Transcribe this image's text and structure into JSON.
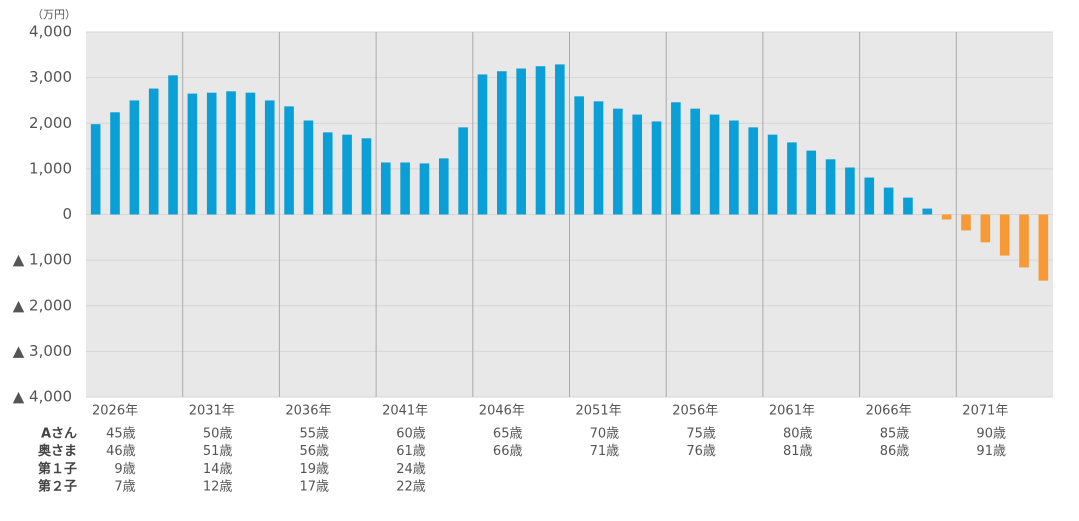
{
  "chart_data": {
    "type": "bar",
    "unit_label": "（万円）",
    "categories": [
      "2026年",
      null,
      null,
      null,
      null,
      "2031年",
      null,
      null,
      null,
      null,
      "2036年",
      null,
      null,
      null,
      null,
      "2041年",
      null,
      null,
      null,
      null,
      "2046年",
      null,
      null,
      null,
      null,
      "2051年",
      null,
      null,
      null,
      null,
      "2056年",
      null,
      null,
      null,
      null,
      "2061年",
      null,
      null,
      null,
      null,
      "2066年",
      null,
      null,
      null,
      null,
      "2071年",
      null,
      null,
      null,
      null
    ],
    "values": [
      1980,
      2240,
      2500,
      2760,
      3050,
      2650,
      2670,
      2700,
      2670,
      2500,
      2370,
      2060,
      1800,
      1750,
      1670,
      1140,
      1140,
      1120,
      1230,
      1910,
      3070,
      3140,
      3200,
      3250,
      3290,
      2590,
      2480,
      2320,
      2190,
      2040,
      2460,
      2320,
      2190,
      2060,
      1910,
      1750,
      1580,
      1400,
      1210,
      1030,
      810,
      590,
      370,
      130,
      -110,
      -350,
      -610,
      -900,
      -1160,
      -1450
    ],
    "color": "#0a9fd6",
    "negative_color": "#f79a35",
    "ylim": [
      -4000,
      4000
    ],
    "yticks": [
      {
        "value": 4000,
        "label": "4,000"
      },
      {
        "value": 3000,
        "label": "3,000"
      },
      {
        "value": 2000,
        "label": "2,000"
      },
      {
        "value": 1000,
        "label": "1,000"
      },
      0,
      {
        "value": -1000,
        "label": "▲ 1,000"
      },
      {
        "value": -2000,
        "label": "▲ 2,000"
      },
      {
        "value": -3000,
        "label": "▲ 3,000"
      },
      {
        "value": -4000,
        "label": "▲ 4,000"
      }
    ],
    "grid": true,
    "age_table": [
      {
        "label": "Aさん",
        "values": [
          "45歳",
          "50歳",
          "55歳",
          "60歳",
          "65歳",
          "70歳",
          "75歳",
          "80歳",
          "85歳",
          "90歳"
        ]
      },
      {
        "label": "奥さま",
        "values": [
          "46歳",
          "51歳",
          "56歳",
          "61歳",
          "66歳",
          "71歳",
          "76歳",
          "81歳",
          "86歳",
          "91歳"
        ]
      },
      {
        "label": "第１子",
        "values": [
          "9歳",
          "14歳",
          "19歳",
          "24歳"
        ]
      },
      {
        "label": "第２子",
        "values": [
          "7歳",
          "12歳",
          "17歳",
          "22歳"
        ]
      }
    ]
  }
}
